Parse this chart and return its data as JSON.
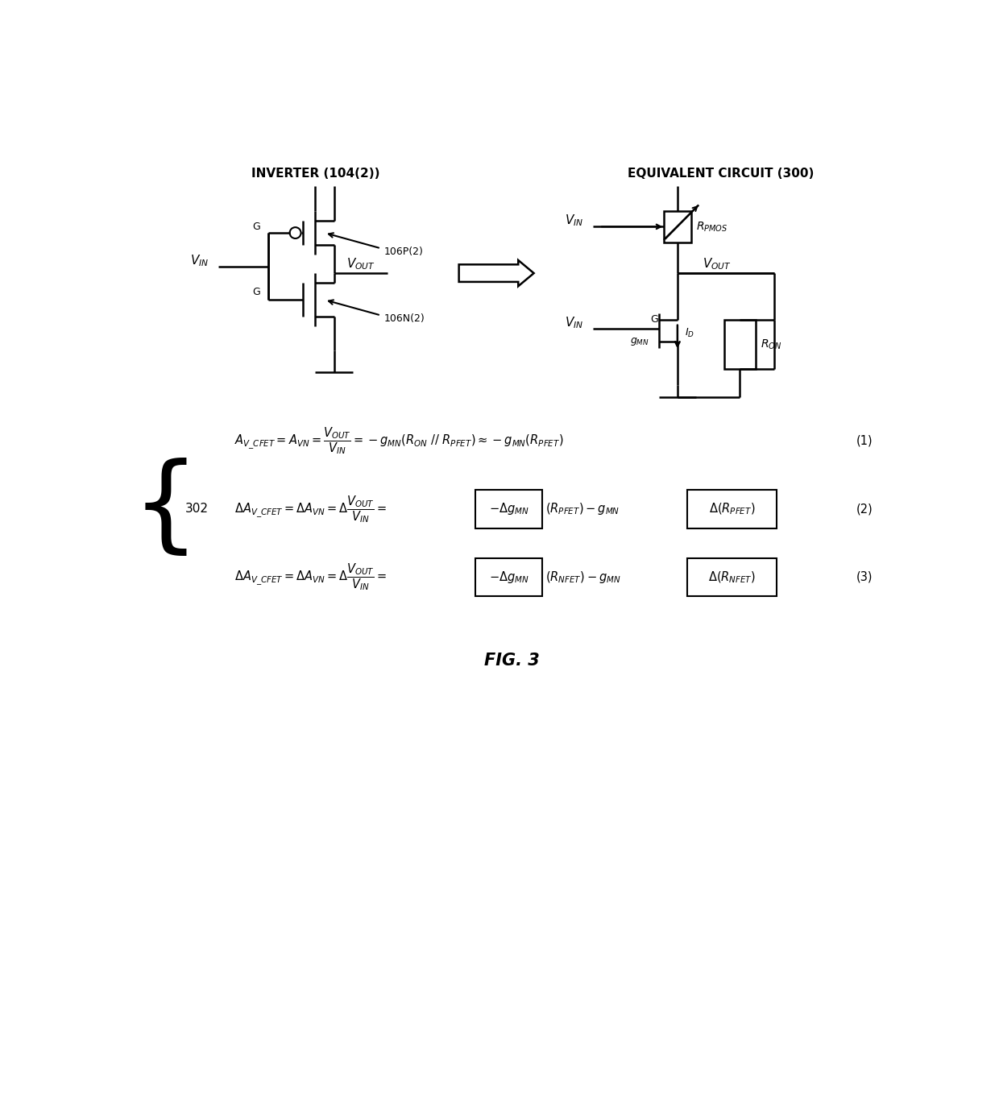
{
  "title": "FIG. 3",
  "left_circuit_title": "INVERTER (104(2))",
  "right_circuit_title": "EQUIVALENT CIRCUIT (300)",
  "bg_color": "#ffffff",
  "line_color": "#000000"
}
